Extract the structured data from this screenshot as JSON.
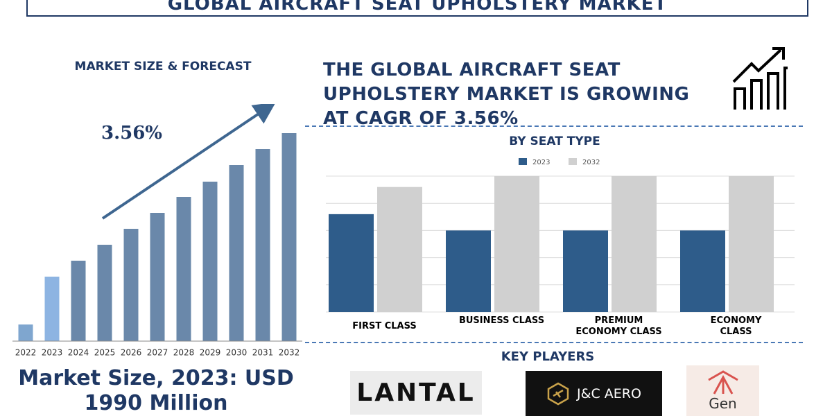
{
  "header": {
    "title": "GLOBAL AIRCRAFT SEAT UPHOLSTERY MARKET"
  },
  "left": {
    "heading": "MARKET SIZE & FORECAST",
    "market_size": "Market Size, 2023: USD 1990 Million"
  },
  "headline": "THE GLOBAL AIRCRAFT SEAT UPHOLSTERY MARKET IS GROWING AT CAGR OF 3.56%",
  "chart_data": [
    {
      "type": "bar",
      "annotation": "3.56%",
      "categories": [
        "2022",
        "2023",
        "2024",
        "2025",
        "2026",
        "2027",
        "2028",
        "2029",
        "2030",
        "2031",
        "2032"
      ],
      "values": [
        24,
        93,
        116,
        139,
        162,
        185,
        208,
        230,
        254,
        277,
        300
      ],
      "colors": [
        "#7fa6cf",
        "#8db4e2",
        "#6a88aa",
        "#6a88aa",
        "#6a88aa",
        "#6a88aa",
        "#6a88aa",
        "#6a88aa",
        "#6a88aa",
        "#6a88aa",
        "#6a88aa"
      ]
    },
    {
      "type": "bar",
      "title": "BY SEAT TYPE",
      "categories": [
        "FIRST CLASS",
        "BUSINESS CLASS",
        "PREMIUM ECONOMY CLASS",
        "ECONOMY CLASS"
      ],
      "series": [
        {
          "name": "2023",
          "color": "#2e5c8a",
          "values": [
            3.6,
            3.0,
            3.0,
            3.0
          ]
        },
        {
          "name": "2032",
          "color": "#d0d0d0",
          "values": [
            4.6,
            5.0,
            5.0,
            5.0
          ]
        }
      ],
      "ylim": [
        0,
        5
      ],
      "yticks": [
        0,
        1,
        2,
        3,
        4,
        5
      ],
      "grid": true,
      "legend": "top"
    }
  ],
  "key_players": {
    "title": "KEY PLAYERS",
    "logos": [
      "LANTAL",
      "J&C AERO",
      "Gen"
    ]
  }
}
